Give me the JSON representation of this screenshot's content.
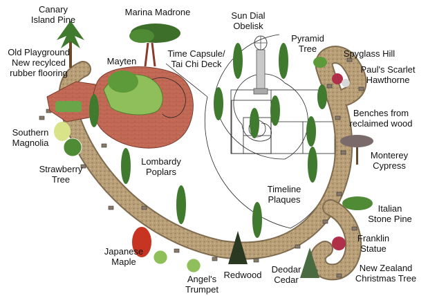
{
  "labels": {
    "canary_island_pine": "Canary\nIsland Pine",
    "marina_madrone": "Marina Madrone",
    "sun_dial_obelisk": "Sun Dial\nObelisk",
    "pyramid_tree": "Pyramid\nTree",
    "spyglass_hill": "Spyglass Hill",
    "pauls_scarlet_hawthorne": "Paul's Scarlet\nHawthorne",
    "old_playground": "Old Playground\nNew recylced\nrubber flooring",
    "mayten": "Mayten",
    "time_capsule": "Time Capsule/\nTai Chi Deck",
    "benches": "Benches from\nreclaimed wood",
    "southern_magnolia": "Southern\nMagnolia",
    "monterey_cypress": "Monterey\nCypress",
    "strawberry_tree": "Strawberry\nTree",
    "lombardy_poplars": "Lombardy\nPoplars",
    "timeline_plaques": "Timeline\nPlaques",
    "italian_stone_pine": "Italian\nStone Pine",
    "franklin_statue": "Franklin\nStatue",
    "japanese_maple": "Japanese\nMaple",
    "angels_trumpet": "Angel's\nTrumpet",
    "redwood": "Redwood",
    "deodar_cedar": "Deodar\nCedar",
    "new_zealand_christmas_tree": "New Zealand\nChristmas Tree"
  },
  "colors": {
    "path": "#b39a72",
    "path_edge": "#8a7455",
    "brick": "#c06a55",
    "cypress": "#3f7a2e",
    "foliage": "#5c9a3a",
    "lawn": "#8fbf5a",
    "line": "#222222"
  }
}
